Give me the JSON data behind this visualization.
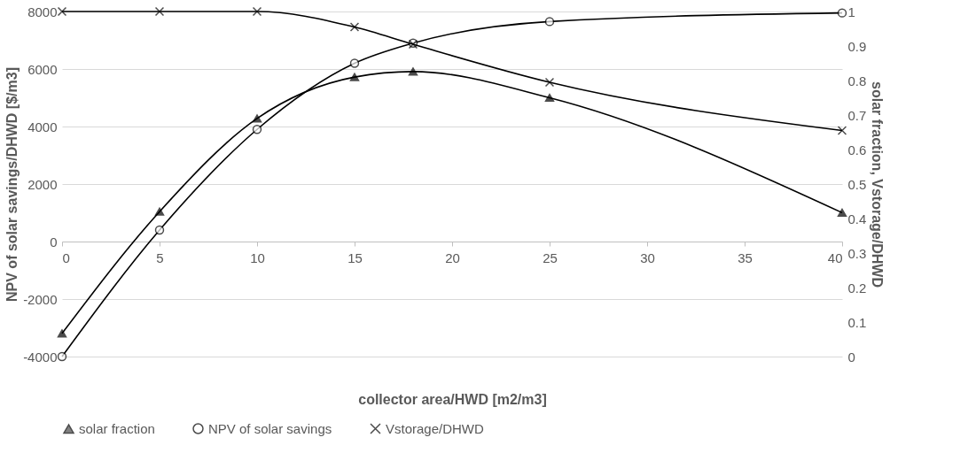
{
  "chart_data": {
    "type": "line",
    "xlabel": "collector area/HWD [m2/m3]",
    "ylabel": "NPV of solar savings/DHWD [$/m3]",
    "y2label": "solar fraction, Vstorage/DHWD",
    "x": [
      0,
      5,
      10,
      15,
      18,
      25,
      40
    ],
    "series": [
      {
        "name": "solar fraction",
        "color": "#000000",
        "axis": "y2",
        "marker": "triangle",
        "values": [
          0.067,
          0.42,
          0.69,
          0.81,
          0.826,
          0.75,
          0.417
        ]
      },
      {
        "name": "NPV of solar savings",
        "color": "#000000",
        "marker": "circle",
        "values": [
          -4000,
          400,
          3900,
          6200,
          6900,
          7650,
          7950
        ]
      },
      {
        "name": "Vstorage/DHWD",
        "color": "#000000",
        "axis": "y2",
        "marker": "cross",
        "values": [
          1.0,
          1.0,
          1.0,
          0.955,
          0.905,
          0.795,
          0.655
        ]
      }
    ],
    "xlim": [
      0,
      40
    ],
    "xticks": [
      0,
      5,
      10,
      15,
      20,
      25,
      30,
      35,
      40
    ],
    "ylim": [
      -4000,
      8000
    ],
    "yticks": [
      -4000,
      -2000,
      0,
      2000,
      4000,
      6000,
      8000
    ],
    "y2lim": [
      0,
      1
    ],
    "y2ticks": [
      0,
      0.1,
      0.2,
      0.3,
      0.4,
      0.5,
      0.6,
      0.7,
      0.8,
      0.9,
      1
    ],
    "grid": "y",
    "legend": "bottom"
  }
}
